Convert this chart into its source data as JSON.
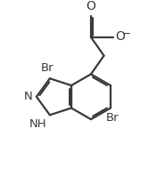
{
  "background_color": "#ffffff",
  "line_color": "#3a3a3a",
  "bond_width": 1.6,
  "font_size": 9.5,
  "fig_width": 1.85,
  "fig_height": 1.99,
  "dpi": 100,
  "xlim": [
    0,
    9.5
  ],
  "ylim": [
    0,
    10.2
  ]
}
